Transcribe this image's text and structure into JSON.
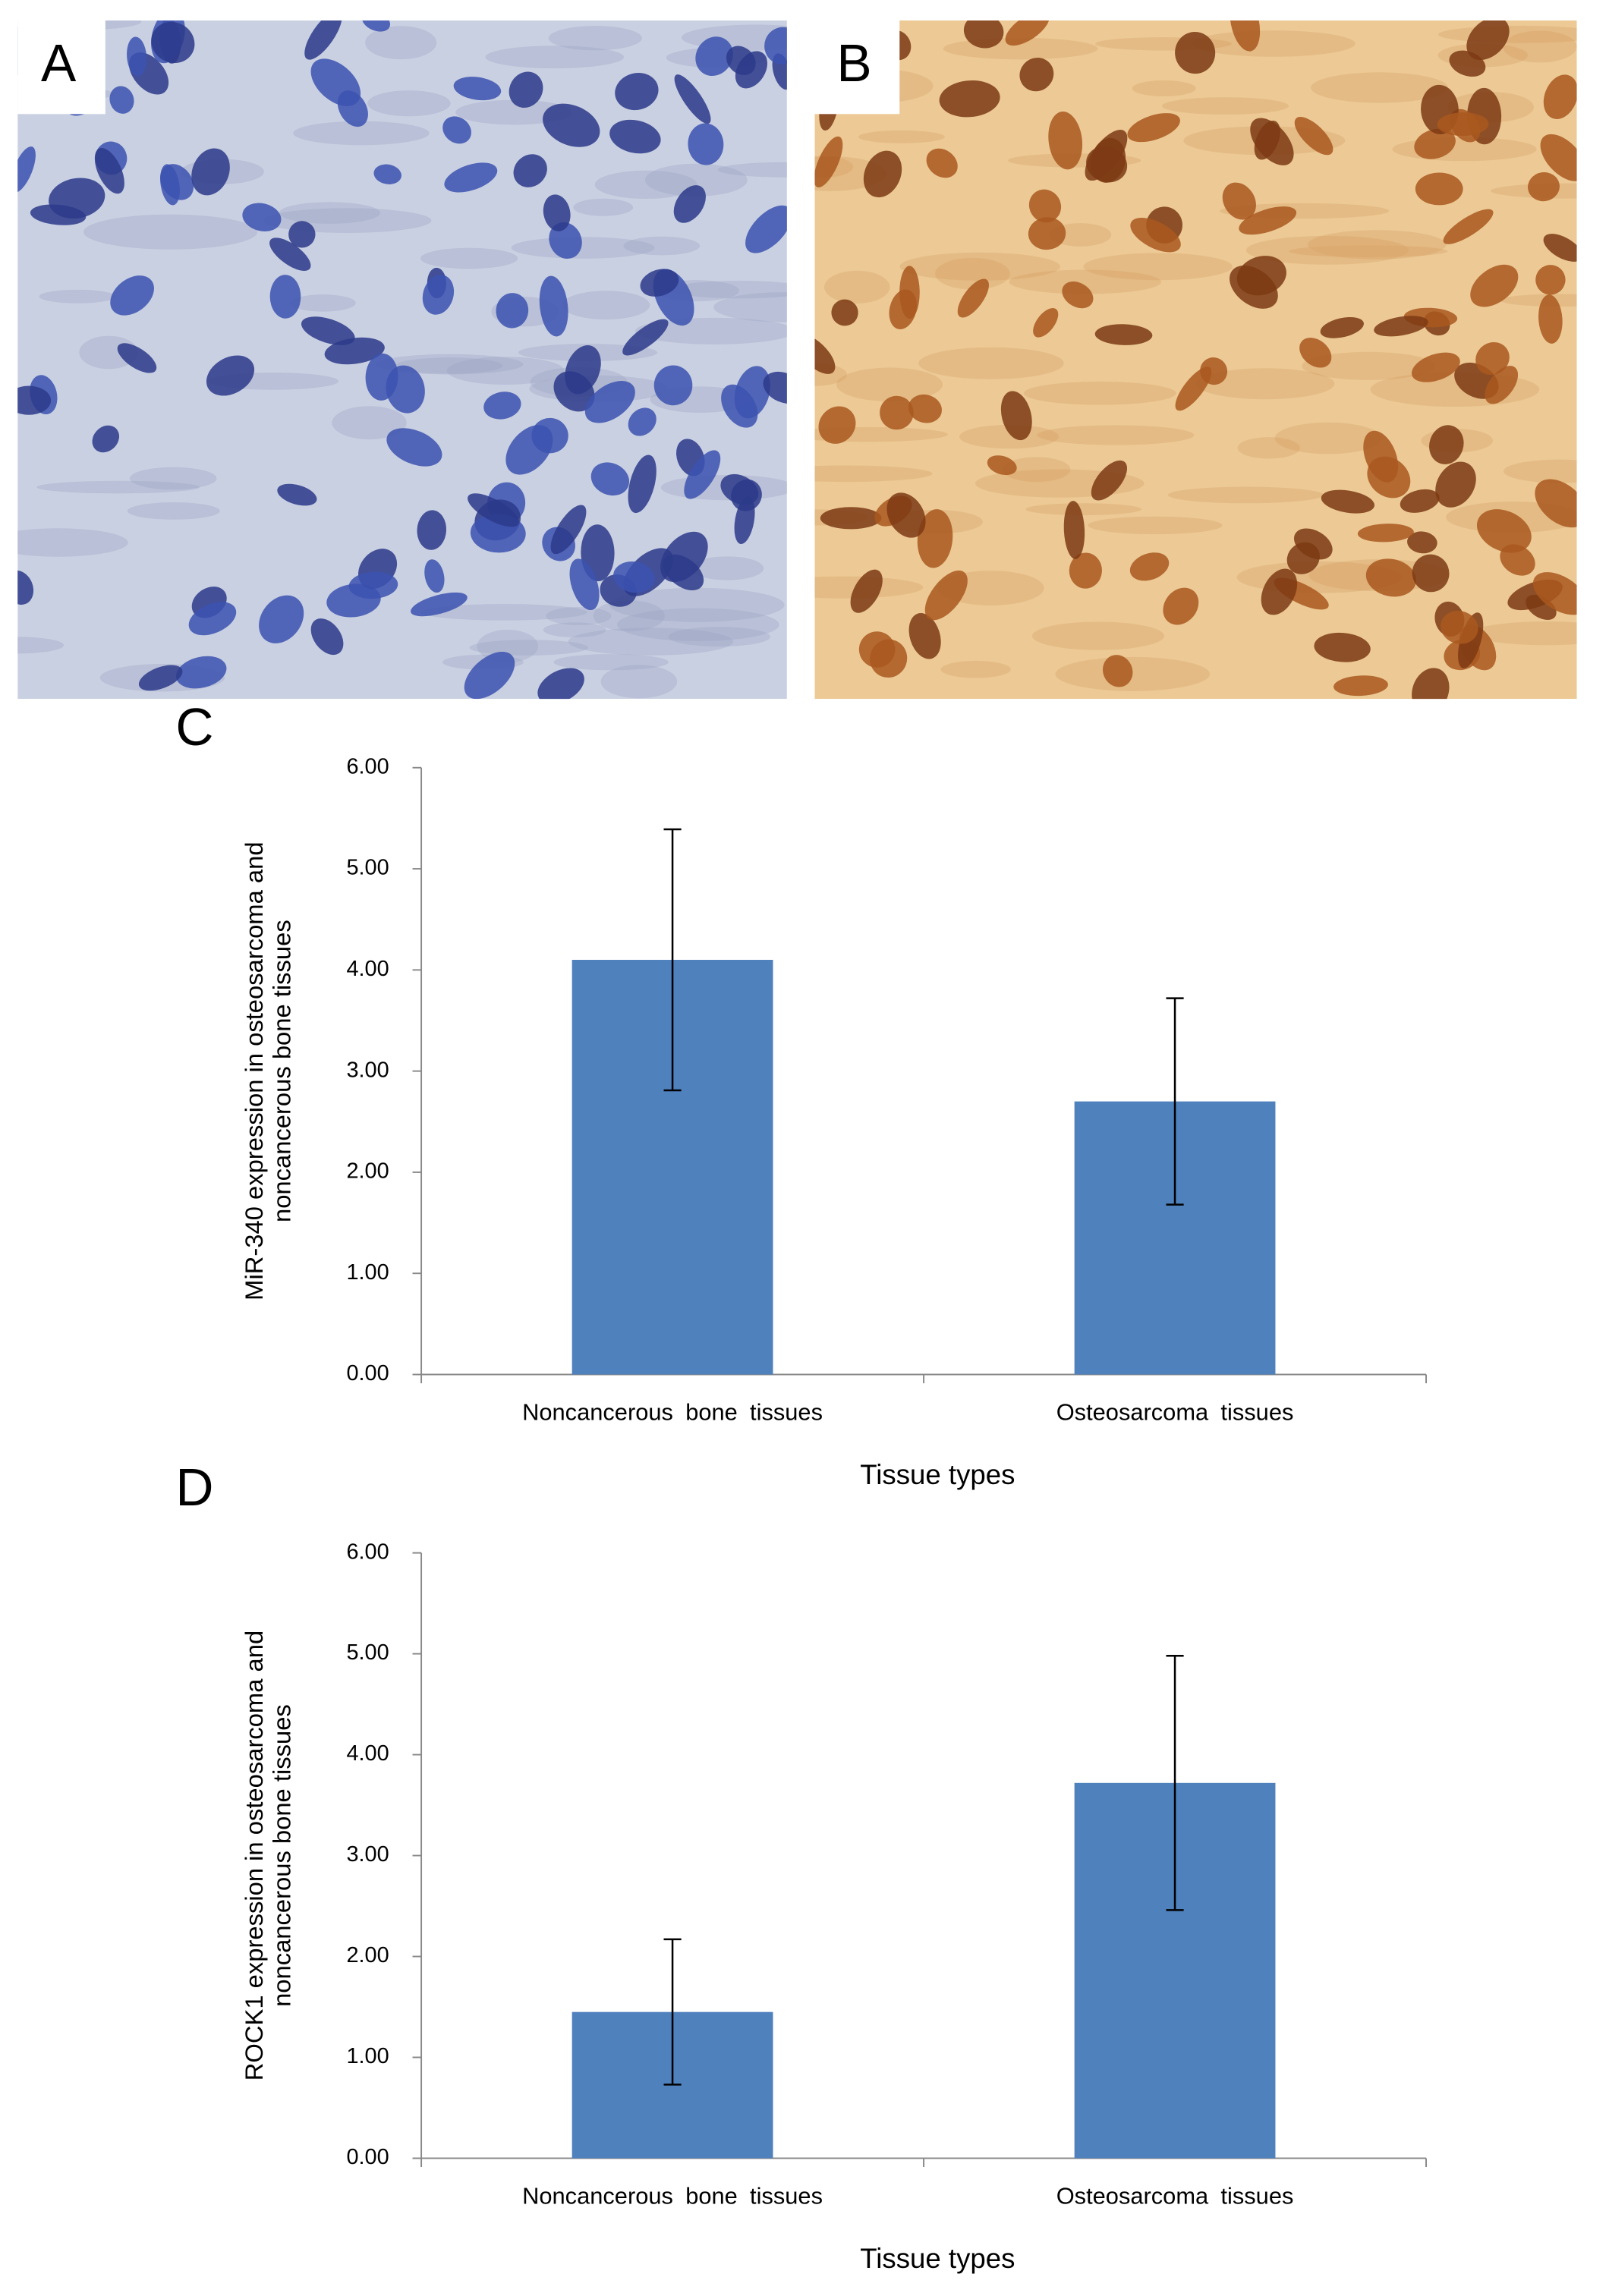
{
  "panels": [
    {
      "label": "A"
    },
    {
      "label": "B"
    }
  ],
  "chart_data": [
    {
      "type": "bar",
      "panel_label": "C",
      "categories": [
        "Noncancerous bone tissues",
        "Osteosarcoma tissues"
      ],
      "values": [
        4.1,
        2.7
      ],
      "errors": [
        1.29,
        1.02
      ],
      "color": "#4f81bd",
      "ylabel": [
        "MiR-340 expression in osteosarcoma and",
        "noncancerous bone tissues"
      ],
      "xlabel": "Tissue types",
      "ylim": [
        0,
        6
      ],
      "yticks": [
        {
          "value": 0,
          "label": "0.00"
        },
        {
          "value": 1,
          "label": "1.00"
        },
        {
          "value": 2,
          "label": "2.00"
        },
        {
          "value": 3,
          "label": "3.00"
        },
        {
          "value": 4,
          "label": "4.00"
        },
        {
          "value": 5,
          "label": "5.00"
        },
        {
          "value": 6,
          "label": "6.00"
        }
      ]
    },
    {
      "type": "bar",
      "panel_label": "D",
      "categories": [
        "Noncancerous bone tissues",
        "Osteosarcoma tissues"
      ],
      "values": [
        1.45,
        3.72
      ],
      "errors": [
        0.72,
        1.26
      ],
      "color": "#4f81bd",
      "ylabel": [
        "ROCK1 expression in osteosarcoma and",
        "noncancerous bone tissues"
      ],
      "xlabel": "Tissue types",
      "ylim": [
        0,
        6
      ],
      "yticks": [
        {
          "value": 0,
          "label": "0.00"
        },
        {
          "value": 1,
          "label": "1.00"
        },
        {
          "value": 2,
          "label": "2.00"
        },
        {
          "value": 3,
          "label": "3.00"
        },
        {
          "value": 4,
          "label": "4.00"
        },
        {
          "value": 5,
          "label": "5.00"
        },
        {
          "value": 6,
          "label": "6.00"
        }
      ]
    }
  ]
}
